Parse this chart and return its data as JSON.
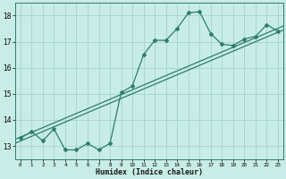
{
  "x": [
    0,
    1,
    2,
    3,
    4,
    5,
    6,
    7,
    8,
    9,
    10,
    11,
    12,
    13,
    14,
    15,
    16,
    17,
    18,
    19,
    20,
    21,
    22,
    23
  ],
  "y": [
    13.3,
    13.55,
    13.2,
    13.65,
    12.85,
    12.85,
    13.1,
    12.85,
    13.1,
    15.05,
    15.3,
    16.5,
    17.05,
    17.05,
    17.5,
    18.1,
    18.15,
    17.3,
    16.9,
    16.85,
    17.1,
    17.2,
    17.65,
    17.4
  ],
  "xlabel": "Humidex (Indice chaleur)",
  "ylim": [
    12.5,
    18.5
  ],
  "xlim": [
    -0.5,
    23.5
  ],
  "yticks": [
    13,
    14,
    15,
    16,
    17,
    18
  ],
  "xtick_labels": [
    "0",
    "1",
    "2",
    "3",
    "4",
    "5",
    "6",
    "7",
    "8",
    "9",
    "10",
    "11",
    "12",
    "13",
    "14",
    "15",
    "16",
    "17",
    "18",
    "19",
    "20",
    "21",
    "22",
    "23"
  ],
  "line_color": "#2e7d6e",
  "bg_color": "#c8ece6",
  "grid_color": "#a8d8d0",
  "trend_line1": [
    13.1,
    17.45
  ],
  "trend_line2": [
    13.25,
    17.6
  ]
}
